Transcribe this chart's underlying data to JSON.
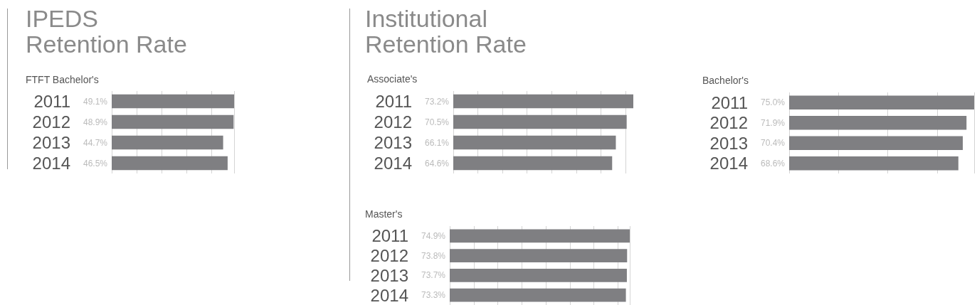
{
  "chart_data": [
    {
      "type": "bar",
      "orientation": "horizontal",
      "title": "IPEDS\nRetention Rate",
      "subtitle": "FTFT Bachelor's",
      "categories": [
        "2011",
        "2012",
        "2013",
        "2014"
      ],
      "values": [
        49.1,
        48.9,
        44.7,
        46.5
      ],
      "value_labels": [
        "49.1%",
        "48.9%",
        "44.7%",
        "46.5%"
      ],
      "color": "#7f7f82",
      "grid": "x",
      "tick_labels": "y"
    },
    {
      "type": "bar",
      "orientation": "horizontal",
      "title": "Institutional\nRetention Rate",
      "subtitle": "Associate's",
      "categories": [
        "2011",
        "2012",
        "2013",
        "2014"
      ],
      "values": [
        73.2,
        70.5,
        66.1,
        64.6
      ],
      "value_labels": [
        "73.2%",
        "70.5%",
        "66.1%",
        "64.6%"
      ],
      "color": "#7f7f82",
      "grid": "x",
      "tick_labels": "y"
    },
    {
      "type": "bar",
      "orientation": "horizontal",
      "subtitle": "Bachelor's",
      "categories": [
        "2011",
        "2012",
        "2013",
        "2014"
      ],
      "values": [
        75.0,
        71.9,
        70.4,
        68.6
      ],
      "value_labels": [
        "75.0%",
        "71.9%",
        "70.4%",
        "68.6%"
      ],
      "color": "#7f7f82",
      "grid": "x",
      "tick_labels": "y"
    },
    {
      "type": "bar",
      "orientation": "horizontal",
      "subtitle": "Master's",
      "categories": [
        "2011",
        "2012",
        "2013",
        "2014"
      ],
      "values": [
        74.9,
        73.8,
        73.7,
        73.3
      ],
      "value_labels": [
        "74.9%",
        "73.8%",
        "73.7%",
        "73.3%"
      ],
      "color": "#7f7f82",
      "grid": "x",
      "tick_labels": "y"
    }
  ]
}
